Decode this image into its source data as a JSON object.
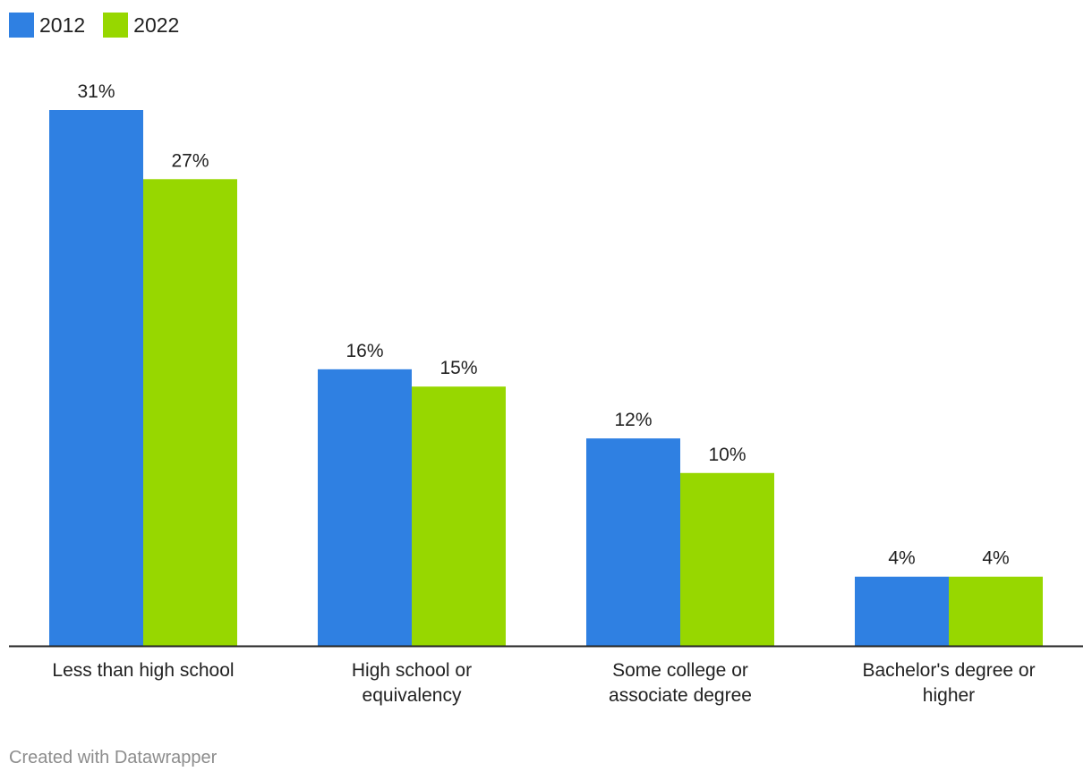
{
  "legend": {
    "items": [
      {
        "label": "2012",
        "color": "#2f80e2"
      },
      {
        "label": "2022",
        "color": "#97d700"
      }
    ]
  },
  "chart_data": {
    "type": "bar",
    "title": "",
    "xlabel": "",
    "ylabel": "",
    "ylim": [
      0,
      31
    ],
    "grid": false,
    "legend_position": "top-left",
    "categories": [
      [
        "Less than high school"
      ],
      [
        "High school or",
        "equivalency"
      ],
      [
        "Some college or",
        "associate degree"
      ],
      [
        "Bachelor's degree or",
        "higher"
      ]
    ],
    "series": [
      {
        "name": "2012",
        "color": "#2f80e2",
        "values": [
          31,
          16,
          12,
          4
        ],
        "labels": [
          "31%",
          "16%",
          "12%",
          "4%"
        ]
      },
      {
        "name": "2022",
        "color": "#97d700",
        "values": [
          27,
          15,
          10,
          4
        ],
        "labels": [
          "27%",
          "15%",
          "10%",
          "4%"
        ]
      }
    ]
  },
  "footer": {
    "credit": "Created with Datawrapper"
  }
}
